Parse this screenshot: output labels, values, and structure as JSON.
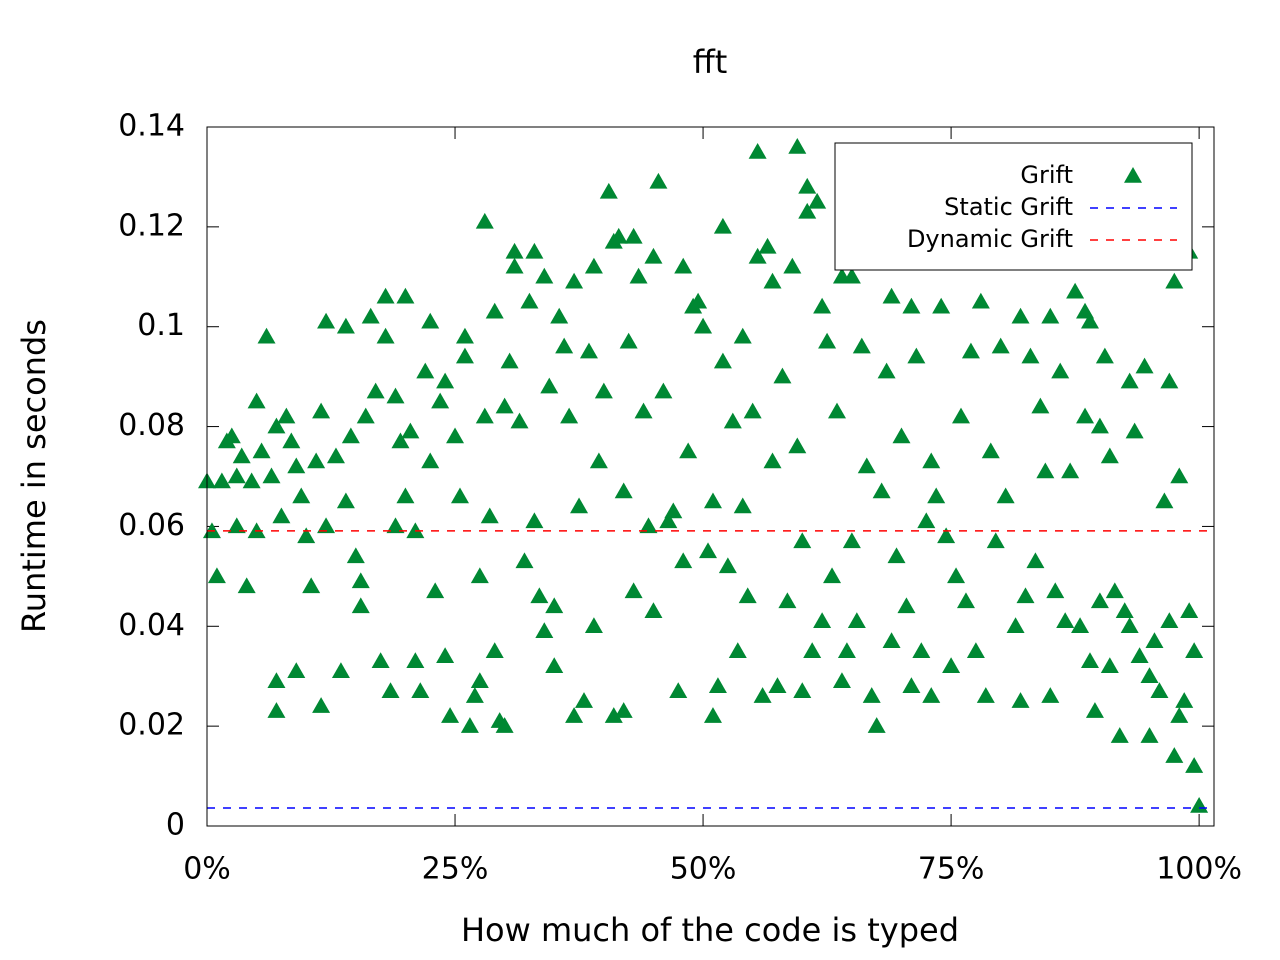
{
  "chart_data": {
    "type": "scatter",
    "title": "fft",
    "x_label": "How much of the code is typed",
    "y_label": "Runtime in seconds",
    "xlim": [
      0,
      101.5
    ],
    "ylim": [
      0,
      0.14
    ],
    "xticks": [
      {
        "value": 0,
        "label": "0%"
      },
      {
        "value": 25,
        "label": "25%"
      },
      {
        "value": 50,
        "label": "50%"
      },
      {
        "value": 75,
        "label": "75%"
      },
      {
        "value": 100,
        "label": "100%"
      }
    ],
    "yticks": [
      0,
      0.02,
      0.04,
      0.06,
      0.08,
      0.1,
      0.12,
      0.14
    ],
    "grid": false,
    "legend": "top-right",
    "series": [
      {
        "name": "Grift",
        "color": "#008833",
        "x": [
          0,
          0.5,
          1,
          1.5,
          2,
          2.5,
          3,
          3,
          3.5,
          4,
          4.5,
          5,
          5,
          5.5,
          6,
          6.5,
          7,
          7,
          7,
          7.5,
          8,
          8.5,
          9,
          9,
          9.5,
          10,
          10.5,
          11,
          11.5,
          11.5,
          12,
          12,
          13,
          13.5,
          14,
          14,
          14.5,
          15,
          15.5,
          15.5,
          16,
          16.5,
          17,
          17.5,
          18,
          18,
          18.5,
          19,
          19,
          19.5,
          20,
          20,
          20.5,
          21,
          21,
          21.5,
          22,
          22.5,
          22.5,
          23,
          23.5,
          24,
          24,
          24.5,
          25,
          25.5,
          26,
          26,
          26.5,
          27,
          27.5,
          27.5,
          28,
          28,
          28.5,
          29,
          29,
          29.5,
          30,
          30,
          30.5,
          31,
          31,
          31.5,
          32,
          32.5,
          33,
          33,
          33.5,
          34,
          34,
          34.5,
          35,
          35,
          35.5,
          36,
          36.5,
          37,
          37,
          37.5,
          38,
          38.5,
          39,
          39,
          39.5,
          40,
          40.5,
          41,
          41,
          41.5,
          42,
          42,
          42.5,
          43,
          43,
          43.5,
          44,
          44.5,
          45,
          45,
          45.5,
          46,
          46.5,
          47,
          47.5,
          48,
          48,
          48.5,
          49,
          49.5,
          50,
          50.5,
          51,
          51,
          51.5,
          52,
          52,
          52.5,
          53,
          53.5,
          54,
          54,
          54.5,
          55,
          55.5,
          55.5,
          56,
          56.5,
          57,
          57,
          57.5,
          58,
          58.5,
          59,
          59.5,
          59.5,
          60,
          60,
          60.5,
          60.5,
          61,
          61.5,
          62,
          62,
          62.5,
          63,
          63.5,
          64,
          64,
          64.5,
          65,
          65,
          65.5,
          66,
          66.5,
          67,
          67.5,
          68,
          68.5,
          69,
          69,
          69.5,
          70,
          70.5,
          71,
          71,
          71.5,
          72,
          72.5,
          73,
          73,
          73.5,
          74,
          74.5,
          75,
          75.5,
          76,
          76.5,
          77,
          77.5,
          78,
          78.5,
          79,
          79.5,
          80,
          80.5,
          81,
          81.5,
          82,
          82,
          82.5,
          83,
          83.5,
          84,
          84.5,
          85,
          85,
          85.5,
          86,
          86.5,
          87,
          87.5,
          88,
          88.5,
          88.5,
          89,
          89,
          89.5,
          90,
          90,
          90.5,
          91,
          91,
          91.5,
          92,
          92.5,
          93,
          93,
          93.5,
          94,
          94.5,
          95,
          95,
          95.5,
          96,
          96.5,
          97,
          97,
          97.5,
          97.5,
          98,
          98,
          98.5,
          99,
          99,
          99.5,
          99.5,
          100
        ],
        "values": [
          0.069,
          0.059,
          0.05,
          0.069,
          0.077,
          0.078,
          0.07,
          0.06,
          0.074,
          0.048,
          0.069,
          0.085,
          0.059,
          0.075,
          0.098,
          0.07,
          0.08,
          0.029,
          0.023,
          0.062,
          0.082,
          0.077,
          0.031,
          0.072,
          0.066,
          0.058,
          0.048,
          0.073,
          0.024,
          0.083,
          0.101,
          0.06,
          0.074,
          0.031,
          0.1,
          0.065,
          0.078,
          0.054,
          0.044,
          0.049,
          0.082,
          0.102,
          0.087,
          0.033,
          0.098,
          0.106,
          0.027,
          0.086,
          0.06,
          0.077,
          0.106,
          0.066,
          0.079,
          0.059,
          0.033,
          0.027,
          0.091,
          0.073,
          0.101,
          0.047,
          0.085,
          0.034,
          0.089,
          0.022,
          0.078,
          0.066,
          0.094,
          0.098,
          0.02,
          0.026,
          0.05,
          0.029,
          0.121,
          0.082,
          0.062,
          0.035,
          0.103,
          0.021,
          0.084,
          0.02,
          0.093,
          0.112,
          0.115,
          0.081,
          0.053,
          0.105,
          0.115,
          0.061,
          0.046,
          0.11,
          0.039,
          0.088,
          0.032,
          0.044,
          0.102,
          0.096,
          0.082,
          0.022,
          0.109,
          0.064,
          0.025,
          0.095,
          0.04,
          0.112,
          0.073,
          0.087,
          0.127,
          0.117,
          0.022,
          0.118,
          0.067,
          0.023,
          0.097,
          0.047,
          0.118,
          0.11,
          0.083,
          0.06,
          0.114,
          0.043,
          0.129,
          0.087,
          0.061,
          0.063,
          0.027,
          0.112,
          0.053,
          0.075,
          0.104,
          0.105,
          0.1,
          0.055,
          0.065,
          0.022,
          0.028,
          0.12,
          0.093,
          0.052,
          0.081,
          0.035,
          0.098,
          0.064,
          0.046,
          0.083,
          0.135,
          0.114,
          0.026,
          0.116,
          0.109,
          0.073,
          0.028,
          0.09,
          0.045,
          0.112,
          0.136,
          0.076,
          0.027,
          0.057,
          0.128,
          0.123,
          0.035,
          0.125,
          0.104,
          0.041,
          0.097,
          0.05,
          0.083,
          0.029,
          0.11,
          0.035,
          0.11,
          0.057,
          0.041,
          0.096,
          0.072,
          0.026,
          0.02,
          0.067,
          0.091,
          0.106,
          0.037,
          0.054,
          0.078,
          0.044,
          0.028,
          0.104,
          0.094,
          0.035,
          0.061,
          0.026,
          0.073,
          0.066,
          0.104,
          0.058,
          0.032,
          0.05,
          0.082,
          0.045,
          0.095,
          0.035,
          0.105,
          0.026,
          0.075,
          0.057,
          0.096,
          0.066,
          0.113,
          0.04,
          0.102,
          0.025,
          0.046,
          0.094,
          0.053,
          0.084,
          0.071,
          0.102,
          0.026,
          0.047,
          0.091,
          0.041,
          0.071,
          0.107,
          0.04,
          0.103,
          0.082,
          0.101,
          0.033,
          0.023,
          0.08,
          0.045,
          0.094,
          0.074,
          0.032,
          0.047,
          0.018,
          0.043,
          0.089,
          0.04,
          0.079,
          0.034,
          0.092,
          0.018,
          0.03,
          0.037,
          0.027,
          0.065,
          0.089,
          0.041,
          0.109,
          0.014,
          0.07,
          0.022,
          0.025,
          0.115,
          0.043,
          0.035,
          0.012,
          0.004
        ]
      },
      {
        "name": "Static Grift",
        "color": "#0000ff",
        "dashed": true,
        "values": [
          0.0036
        ]
      },
      {
        "name": "Dynamic Grift",
        "color": "#ff0000",
        "dashed": true,
        "values": [
          0.0591
        ]
      }
    ]
  }
}
